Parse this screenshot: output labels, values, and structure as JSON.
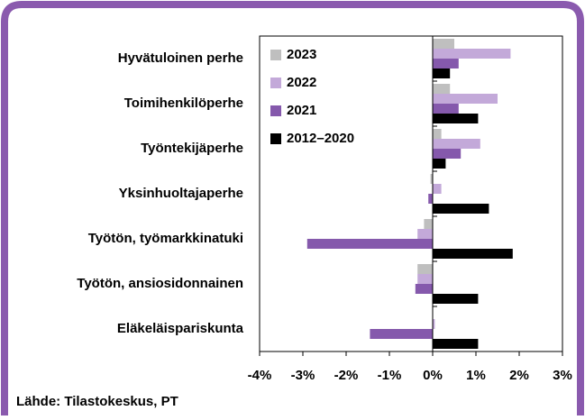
{
  "chart_data": {
    "type": "barh",
    "categories": [
      "Hyvätuloinen perhe",
      "Toimihenkilöperhe",
      "Työntekijäperhe",
      "Yksinhuoltajaperhe",
      "Työtön, työmarkkinatuki",
      "Työtön, ansiosidonnainen",
      "Eläkeläispariskunta"
    ],
    "series": [
      {
        "name": "2023",
        "color": "#bfbfbf",
        "values": [
          0.5,
          0.4,
          0.2,
          -0.05,
          -0.2,
          -0.35,
          0
        ]
      },
      {
        "name": "2022",
        "color": "#c3a9d9",
        "values": [
          1.8,
          1.5,
          1.1,
          0.2,
          -0.35,
          -0.35,
          0.05
        ]
      },
      {
        "name": "2021",
        "color": "#8559ac",
        "values": [
          0.6,
          0.6,
          0.65,
          -0.1,
          -2.9,
          -0.4,
          -1.45
        ]
      },
      {
        "name": "2012–2020",
        "color": "#000000",
        "values": [
          0.4,
          1.05,
          0.3,
          1.3,
          1.85,
          1.05,
          1.05
        ]
      }
    ],
    "xlim": [
      -4,
      3
    ],
    "xticks": [
      {
        "value": -4,
        "label": "-4%"
      },
      {
        "value": -3,
        "label": "-3%"
      },
      {
        "value": -2,
        "label": "-2%"
      },
      {
        "value": -1,
        "label": "-1%"
      },
      {
        "value": 0,
        "label": "0%"
      },
      {
        "value": 1,
        "label": "1%"
      },
      {
        "value": 2,
        "label": "2%"
      },
      {
        "value": 3,
        "label": "3%"
      }
    ],
    "legend": "upper left",
    "source": "Lähde: Tilastokeskus, PT"
  }
}
